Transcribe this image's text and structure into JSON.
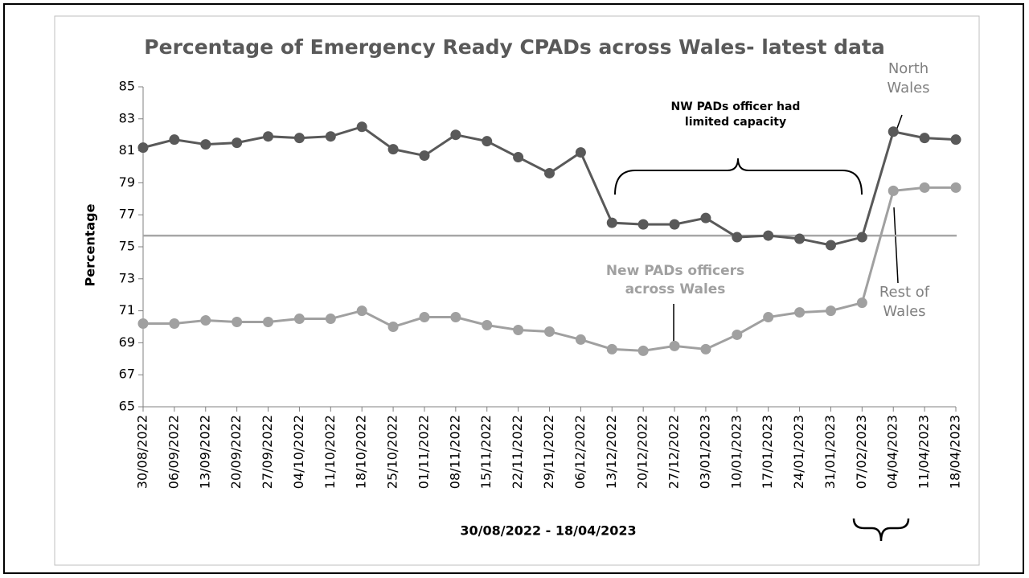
{
  "chart_data": {
    "type": "line",
    "title": "Percentage of Emergency Ready CPADs across Wales- latest data",
    "x_label": "30/08/2022 - 18/04/2023",
    "y_label": "Percentage",
    "categories": [
      "30/08/2022",
      "06/09/2022",
      "13/09/2022",
      "20/09/2022",
      "27/09/2022",
      "04/10/2022",
      "11/10/2022",
      "18/10/2022",
      "25/10/2022",
      "01/11/2022",
      "08/11/2022",
      "15/11/2022",
      "22/11/2022",
      "29/11/2022",
      "06/12/2022",
      "13/12/2022",
      "20/12/2022",
      "27/12/2022",
      "03/01/2023",
      "10/01/2023",
      "17/01/2023",
      "24/01/2023",
      "31/01/2023",
      "07/02/2023",
      "04/04/2023",
      "11/04/2023",
      "18/04/2023"
    ],
    "series": [
      {
        "name": "North Wales",
        "color": "#595959",
        "values": [
          81.2,
          81.7,
          81.4,
          81.5,
          81.9,
          81.8,
          81.9,
          82.5,
          81.1,
          80.7,
          82.0,
          81.6,
          80.6,
          79.6,
          80.9,
          76.5,
          76.4,
          76.4,
          76.8,
          75.6,
          75.7,
          75.5,
          75.1,
          75.6,
          82.2,
          81.8,
          81.7
        ]
      },
      {
        "name": "Rest of Wales",
        "color": "#a0a0a0",
        "values": [
          70.2,
          70.2,
          70.4,
          70.3,
          70.3,
          70.5,
          70.5,
          71.0,
          70.0,
          70.6,
          70.6,
          70.1,
          69.8,
          69.7,
          69.2,
          68.6,
          68.5,
          68.8,
          68.6,
          69.5,
          70.6,
          70.9,
          71.0,
          71.5,
          78.5,
          78.7,
          78.7
        ]
      }
    ],
    "reference_line": {
      "value": 75.7,
      "color": "#a6a6a6"
    },
    "annotations": [
      "NW PADs officer had limited capacity",
      "New PADs officers across Wales"
    ],
    "ylim": [
      65,
      85
    ],
    "yticks": [
      65,
      67,
      69,
      71,
      73,
      75,
      77,
      79,
      81,
      83,
      85
    ]
  }
}
